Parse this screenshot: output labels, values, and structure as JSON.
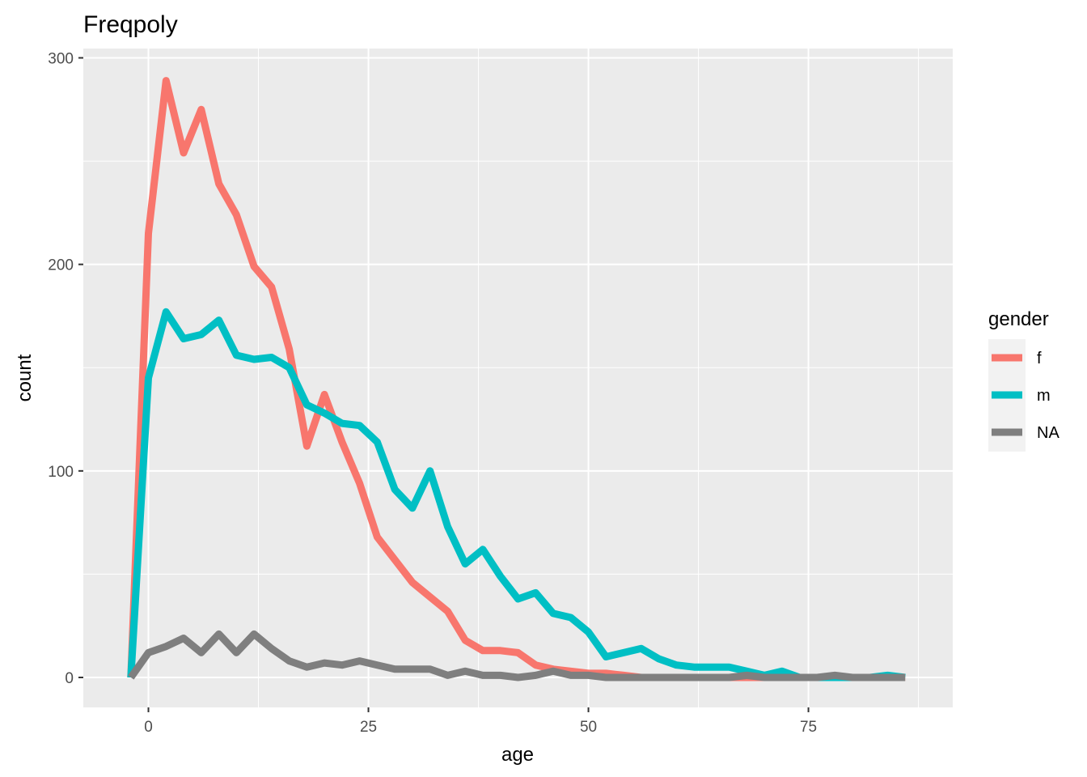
{
  "chart_data": {
    "type": "line",
    "title": "Freqpoly",
    "xlabel": "age",
    "ylabel": "count",
    "xlim": [
      -7.4,
      91.4
    ],
    "ylim": [
      -14.5,
      304.5
    ],
    "x_ticks": [
      0,
      25,
      50,
      75
    ],
    "y_ticks": [
      0,
      100,
      200,
      300
    ],
    "grid": true,
    "legend": {
      "title": "gender",
      "placement": "right"
    },
    "x": [
      -2,
      0,
      2,
      4,
      6,
      8,
      10,
      12,
      14,
      16,
      18,
      20,
      22,
      24,
      26,
      28,
      30,
      32,
      34,
      36,
      38,
      40,
      42,
      44,
      46,
      48,
      50,
      52,
      54,
      56,
      58,
      60,
      62,
      64,
      66,
      68,
      70,
      72,
      74,
      76,
      78,
      80,
      82,
      84,
      86
    ],
    "series": [
      {
        "name": "f",
        "color": "#F8766D",
        "values": [
          0,
          215,
          289,
          254,
          275,
          239,
          224,
          199,
          189,
          159,
          112,
          137,
          114,
          94,
          68,
          57,
          46,
          39,
          32,
          18,
          13,
          13,
          12,
          6,
          4,
          3,
          2,
          2,
          1,
          0,
          0,
          0,
          0,
          0,
          0,
          0,
          0,
          0,
          0,
          0,
          0,
          0,
          0,
          0,
          0
        ]
      },
      {
        "name": "m",
        "color": "#00BFC4",
        "values": [
          0,
          145,
          177,
          164,
          166,
          173,
          156,
          154,
          155,
          150,
          132,
          128,
          123,
          122,
          114,
          91,
          82,
          100,
          73,
          55,
          62,
          49,
          38,
          41,
          31,
          29,
          22,
          10,
          12,
          14,
          9,
          6,
          5,
          5,
          5,
          3,
          1,
          3,
          0,
          0,
          0,
          0,
          0,
          1,
          0
        ]
      },
      {
        "name": "NA",
        "color": "#7F7F7F",
        "values": [
          0,
          12,
          15,
          19,
          12,
          21,
          12,
          21,
          14,
          8,
          5,
          7,
          6,
          8,
          6,
          4,
          4,
          4,
          1,
          3,
          1,
          1,
          0,
          1,
          3,
          1,
          1,
          0,
          0,
          0,
          0,
          0,
          0,
          0,
          0,
          1,
          0,
          0,
          0,
          0,
          1,
          0,
          0,
          0,
          0
        ]
      }
    ]
  }
}
